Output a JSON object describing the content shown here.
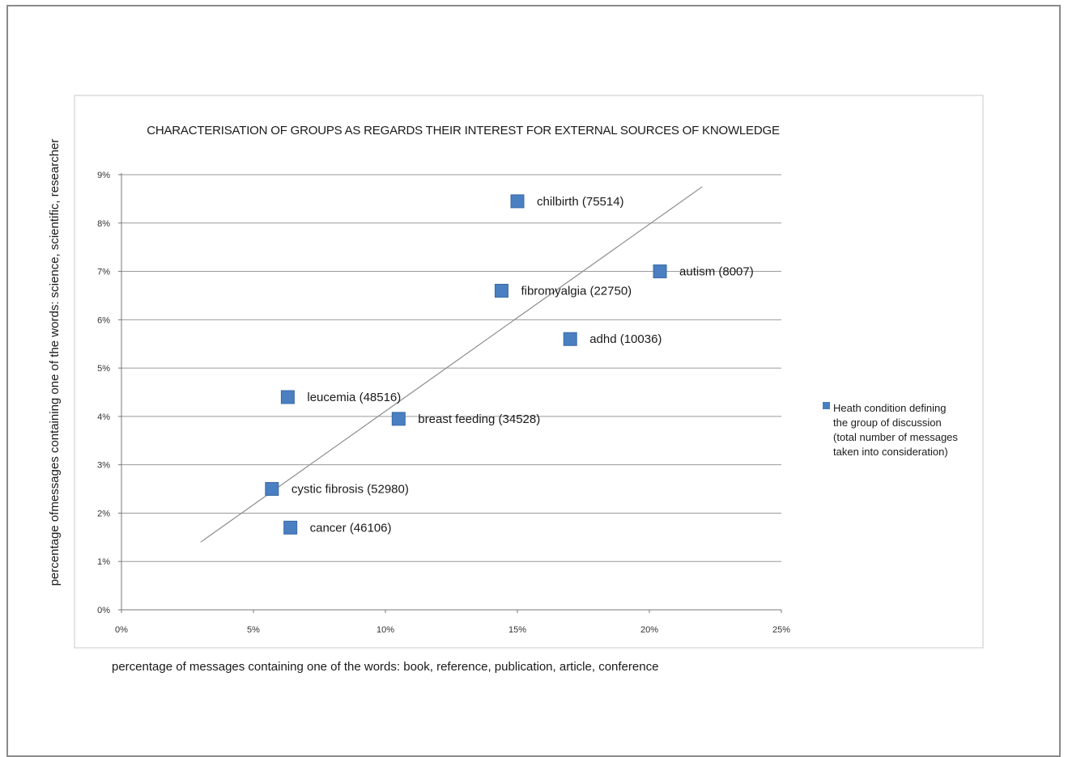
{
  "chart_data": {
    "type": "scatter",
    "title": "CHARACTERISATION OF GROUPS AS REGARDS THEIR INTEREST FOR EXTERNAL SOURCES OF KNOWLEDGE",
    "xlabel": "percentage of messages containing one of the words: book, reference, publication,  article, conference",
    "ylabel": "percentage ofmessages containing one of the words: science, scientific, researcher",
    "xlim": [
      0,
      25
    ],
    "ylim": [
      0,
      9
    ],
    "x_ticks": [
      "0%",
      "5%",
      "10%",
      "15%",
      "20%",
      "25%"
    ],
    "y_ticks": [
      "0%",
      "1%",
      "2%",
      "3%",
      "4%",
      "5%",
      "6%",
      "7%",
      "8%",
      "9%"
    ],
    "grid": "horizontal",
    "legend_position": "right",
    "legend": [
      "Heath condition defining",
      "the group  of discussion",
      "(total number of messages",
      "taken into consideration)"
    ],
    "series_color": "#4a7fc1",
    "trendline": {
      "x": [
        3.0,
        22.0
      ],
      "y": [
        1.4,
        8.75
      ]
    },
    "points": [
      {
        "label": "chilbirth (75514)",
        "x": 15.0,
        "y": 8.45
      },
      {
        "label": "autism (8007)",
        "x": 20.4,
        "y": 7.0
      },
      {
        "label": "fibromyalgia (22750)",
        "x": 14.4,
        "y": 6.6
      },
      {
        "label": "adhd (10036)",
        "x": 17.0,
        "y": 5.6
      },
      {
        "label": "leucemia (48516)",
        "x": 6.3,
        "y": 4.4
      },
      {
        "label": "breast feeding (34528)",
        "x": 10.5,
        "y": 3.95
      },
      {
        "label": "cystic fibrosis (52980)",
        "x": 5.7,
        "y": 2.5
      },
      {
        "label": "cancer (46106)",
        "x": 6.4,
        "y": 1.7
      }
    ]
  }
}
